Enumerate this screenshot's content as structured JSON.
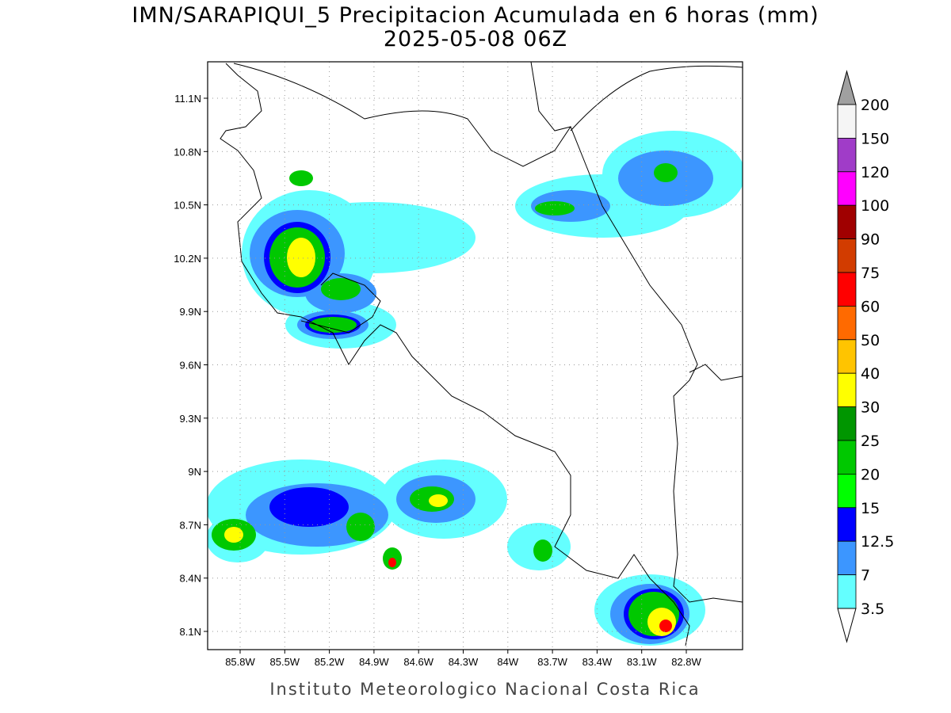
{
  "title": "IMN/SARAPIQUI_5 Precipitacion Acumulada en 6 horas (mm)",
  "subtitle": "2025-05-08 06Z",
  "map": {
    "lat_labels": [
      "11.1N",
      "10.8N",
      "10.5N",
      "10.2N",
      "9.9N",
      "9.6N",
      "9.3N",
      "9N",
      "8.7N",
      "8.4N",
      "8.1N"
    ],
    "lon_labels": [
      "85.8W",
      "85.5W",
      "85.2W",
      "84.9W",
      "84.6W",
      "84.3W",
      "84W",
      "83.7W",
      "83.4W",
      "83.1W",
      "82.8W"
    ]
  },
  "colorbar": {
    "levels": [
      "200",
      "150",
      "120",
      "100",
      "90",
      "75",
      "60",
      "50",
      "40",
      "30",
      "25",
      "20",
      "15",
      "12.5",
      "7",
      "3.5"
    ],
    "colors": [
      "#f5f5f5",
      "#a03cc8",
      "#ff00ff",
      "#a00000",
      "#d23c00",
      "#ff0000",
      "#ff6a00",
      "#ffc400",
      "#ffff00",
      "#009600",
      "#00c800",
      "#00ff00",
      "#0000ff",
      "#3c96ff",
      "#64ffff"
    ],
    "over_color": "#a0a0a0",
    "under_color": "#ffffff"
  },
  "footer": "Instituto Meteorologico Nacional Costa Rica"
}
